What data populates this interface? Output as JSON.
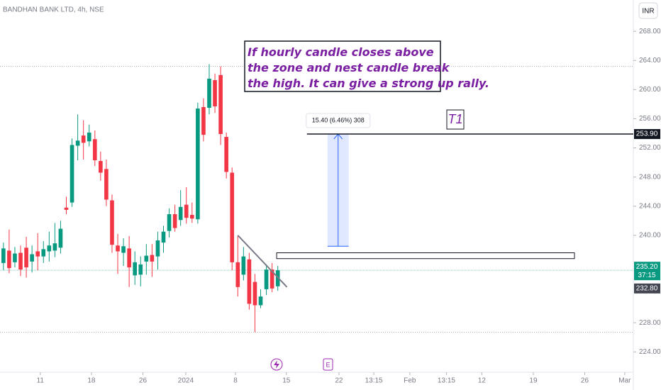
{
  "chart_data": {
    "type": "candlestick",
    "title": "BANDHAN BANK LTD, 4h, NSE",
    "currency": "INR",
    "open": [
      236.2,
      237.9,
      236.3,
      237.6,
      238.3,
      236.4,
      237.8,
      237.1,
      237.8,
      237.9,
      238.3,
      243.8,
      244.5,
      252.3,
      253.7,
      252.9,
      253.2,
      250.2,
      249.1,
      244.8,
      238.6,
      237.6,
      238.2,
      234.5,
      234.6,
      236.4,
      237.3,
      237.1,
      239.0,
      240.6,
      242.9,
      242.1,
      244.2,
      242.8,
      242.2,
      257.6,
      257.5,
      261.3,
      262.0,
      253.5,
      248.6,
      236.3,
      234.6,
      236.7,
      233.6,
      230.4,
      232.6,
      235.3,
      233.0
    ],
    "high": [
      239.0,
      240.8,
      238.4,
      238.6,
      239.8,
      238.6,
      240.3,
      239.2,
      240.5,
      241.7,
      242.0,
      245.3,
      253.3,
      256.6,
      255.8,
      255.2,
      254.4,
      251.5,
      250.4,
      245.6,
      240.2,
      239.6,
      239.9,
      237.8,
      237.1,
      238.8,
      238.8,
      240.5,
      241.3,
      243.7,
      244.2,
      246.2,
      246.6,
      244.5,
      258.2,
      258.8,
      263.5,
      262.2,
      263.2,
      254.1,
      249.3,
      239.9,
      238.4,
      237.6,
      234.7,
      232.6,
      236.0,
      236.2,
      235.8
    ],
    "low": [
      235.2,
      234.8,
      235.6,
      234.4,
      234.2,
      234.9,
      235.2,
      236.2,
      236.4,
      237.0,
      237.5,
      242.9,
      243.9,
      250.3,
      250.4,
      252.2,
      249.5,
      247.5,
      244.0,
      237.6,
      234.7,
      235.8,
      232.9,
      233.2,
      233.0,
      234.6,
      234.3,
      235.3,
      237.6,
      239.7,
      240.5,
      241.3,
      241.6,
      241.7,
      241.6,
      252.9,
      256.6,
      256.8,
      252.4,
      247.8,
      235.2,
      231.6,
      233.8,
      229.8,
      226.7,
      230.0,
      231.8,
      232.2,
      232.4
    ],
    "close": [
      238.2,
      235.5,
      237.5,
      235.3,
      235.6,
      237.4,
      237.1,
      238.1,
      238.6,
      238.9,
      240.9,
      243.5,
      252.4,
      253.0,
      252.7,
      254.1,
      250.3,
      248.6,
      244.9,
      238.7,
      237.8,
      238.5,
      235.6,
      236.3,
      236.0,
      237.2,
      236.4,
      239.3,
      240.5,
      242.9,
      241.0,
      243.9,
      242.4,
      242.3,
      257.4,
      253.8,
      261.5,
      257.7,
      253.9,
      248.7,
      236.3,
      232.9,
      237.1,
      230.6,
      230.4,
      231.6,
      235.3,
      232.7,
      235.2
    ],
    "up_color": "#089981",
    "down_color": "#f23645",
    "xlim": [
      -0.6,
      110.2
    ],
    "xticks": [
      {
        "value": 6.45,
        "label": "11"
      },
      {
        "value": 15.4,
        "label": "18"
      },
      {
        "value": 24.4,
        "label": "26"
      },
      {
        "value": 31.9,
        "label": "2024"
      },
      {
        "value": 40.6,
        "label": "8"
      },
      {
        "value": 49.5,
        "label": "15"
      },
      {
        "value": 58.7,
        "label": "22"
      },
      {
        "value": 64.8,
        "label": "13:15"
      },
      {
        "value": 71.1,
        "label": "Feb"
      },
      {
        "value": 77.5,
        "label": "13:15"
      },
      {
        "value": 83.7,
        "label": "12"
      },
      {
        "value": 92.7,
        "label": "19"
      },
      {
        "value": 101.7,
        "label": "26"
      },
      {
        "value": 108.7,
        "label": "Mar"
      }
    ],
    "ylim": [
      221.2,
      272.3
    ],
    "yticks": [
      {
        "value": 224,
        "label": "224.00"
      },
      {
        "value": 228,
        "label": "228.00"
      },
      {
        "value": 240,
        "label": "240.00"
      },
      {
        "value": 244,
        "label": "244.00"
      },
      {
        "value": 248,
        "label": "248.00"
      },
      {
        "value": 252,
        "label": "252.00"
      },
      {
        "value": 256,
        "label": "256.00"
      },
      {
        "value": 260,
        "label": "260.00"
      },
      {
        "value": 264,
        "label": "264.00"
      },
      {
        "value": 268,
        "label": "268.00"
      }
    ],
    "levels": [
      263.2,
      226.7
    ],
    "current_price": {
      "value": 235.2,
      "label": "235.20",
      "countdown": "37:15"
    },
    "other_price": {
      "value": 232.8,
      "label": "232.80"
    },
    "target": {
      "value": 253.9,
      "label": "253.90",
      "from": 53.1,
      "name": "T1"
    },
    "measure": {
      "from": 238.5,
      "to": 253.9,
      "x0": 56.7,
      "x1": 60.4,
      "label": "15.40 (6.46%) 308"
    },
    "zone": {
      "low": 236.8,
      "high": 237.6,
      "x0": 47.8,
      "x1": 99.9
    },
    "trendline": {
      "x": [
        41,
        49.6
      ],
      "y": [
        240.0,
        232.9
      ]
    },
    "annotation": {
      "lines": [
        "If hourly candle closes above",
        "the zone and nest candle break",
        "the high. It can give a strong up rally."
      ]
    }
  }
}
